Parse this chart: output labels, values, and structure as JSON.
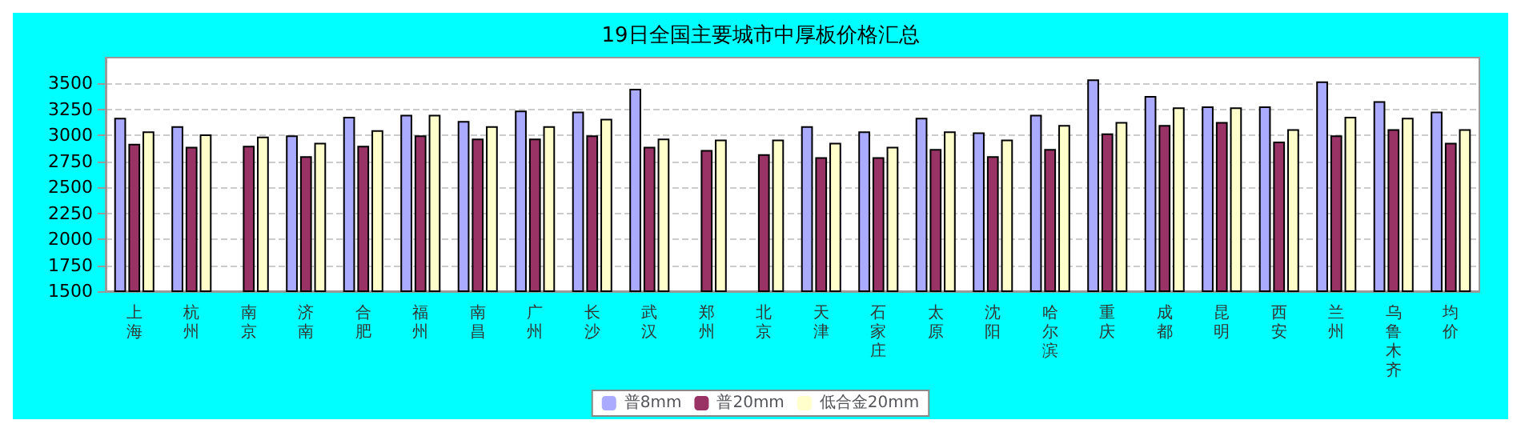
{
  "chart_data": {
    "type": "bar",
    "title": "19日全国主要城市中厚板价格汇总",
    "categories": [
      "上海",
      "杭州",
      "南京",
      "济南",
      "合肥",
      "福州",
      "南昌",
      "广州",
      "长沙",
      "武汉",
      "郑州",
      "北京",
      "天津",
      "石家庄",
      "太原",
      "沈阳",
      "哈尔滨",
      "重庆",
      "成都",
      "昆明",
      "西安",
      "兰州",
      "乌鲁木齐",
      "均价"
    ],
    "series": [
      {
        "name": "普8mm",
        "color": "#aaaaff",
        "values": [
          3170,
          3090,
          null,
          3000,
          3180,
          3200,
          3140,
          3240,
          3230,
          3450,
          null,
          null,
          3090,
          3040,
          3170,
          3030,
          3200,
          3540,
          3380,
          3280,
          3280,
          3520,
          3330,
          3230
        ]
      },
      {
        "name": "普20mm",
        "color": "#993366",
        "values": [
          2920,
          2890,
          2900,
          2800,
          2900,
          3000,
          2970,
          2970,
          3000,
          2890,
          2860,
          2820,
          2790,
          2790,
          2870,
          2800,
          2870,
          3020,
          3100,
          3130,
          2940,
          3000,
          3060,
          2930
        ]
      },
      {
        "name": "低合金20mm",
        "color": "#ffffcc",
        "values": [
          3040,
          3010,
          2990,
          2930,
          3050,
          3200,
          3090,
          3090,
          3160,
          2970,
          2960,
          2960,
          2930,
          2890,
          3040,
          2960,
          3100,
          3130,
          3270,
          3270,
          3060,
          3180,
          3170,
          3060
        ]
      }
    ],
    "ylim": [
      1500,
      3750
    ],
    "yticks": [
      1500,
      1750,
      2000,
      2250,
      2500,
      2750,
      3000,
      3250,
      3500
    ],
    "grid": "y",
    "legend": "bottom"
  }
}
